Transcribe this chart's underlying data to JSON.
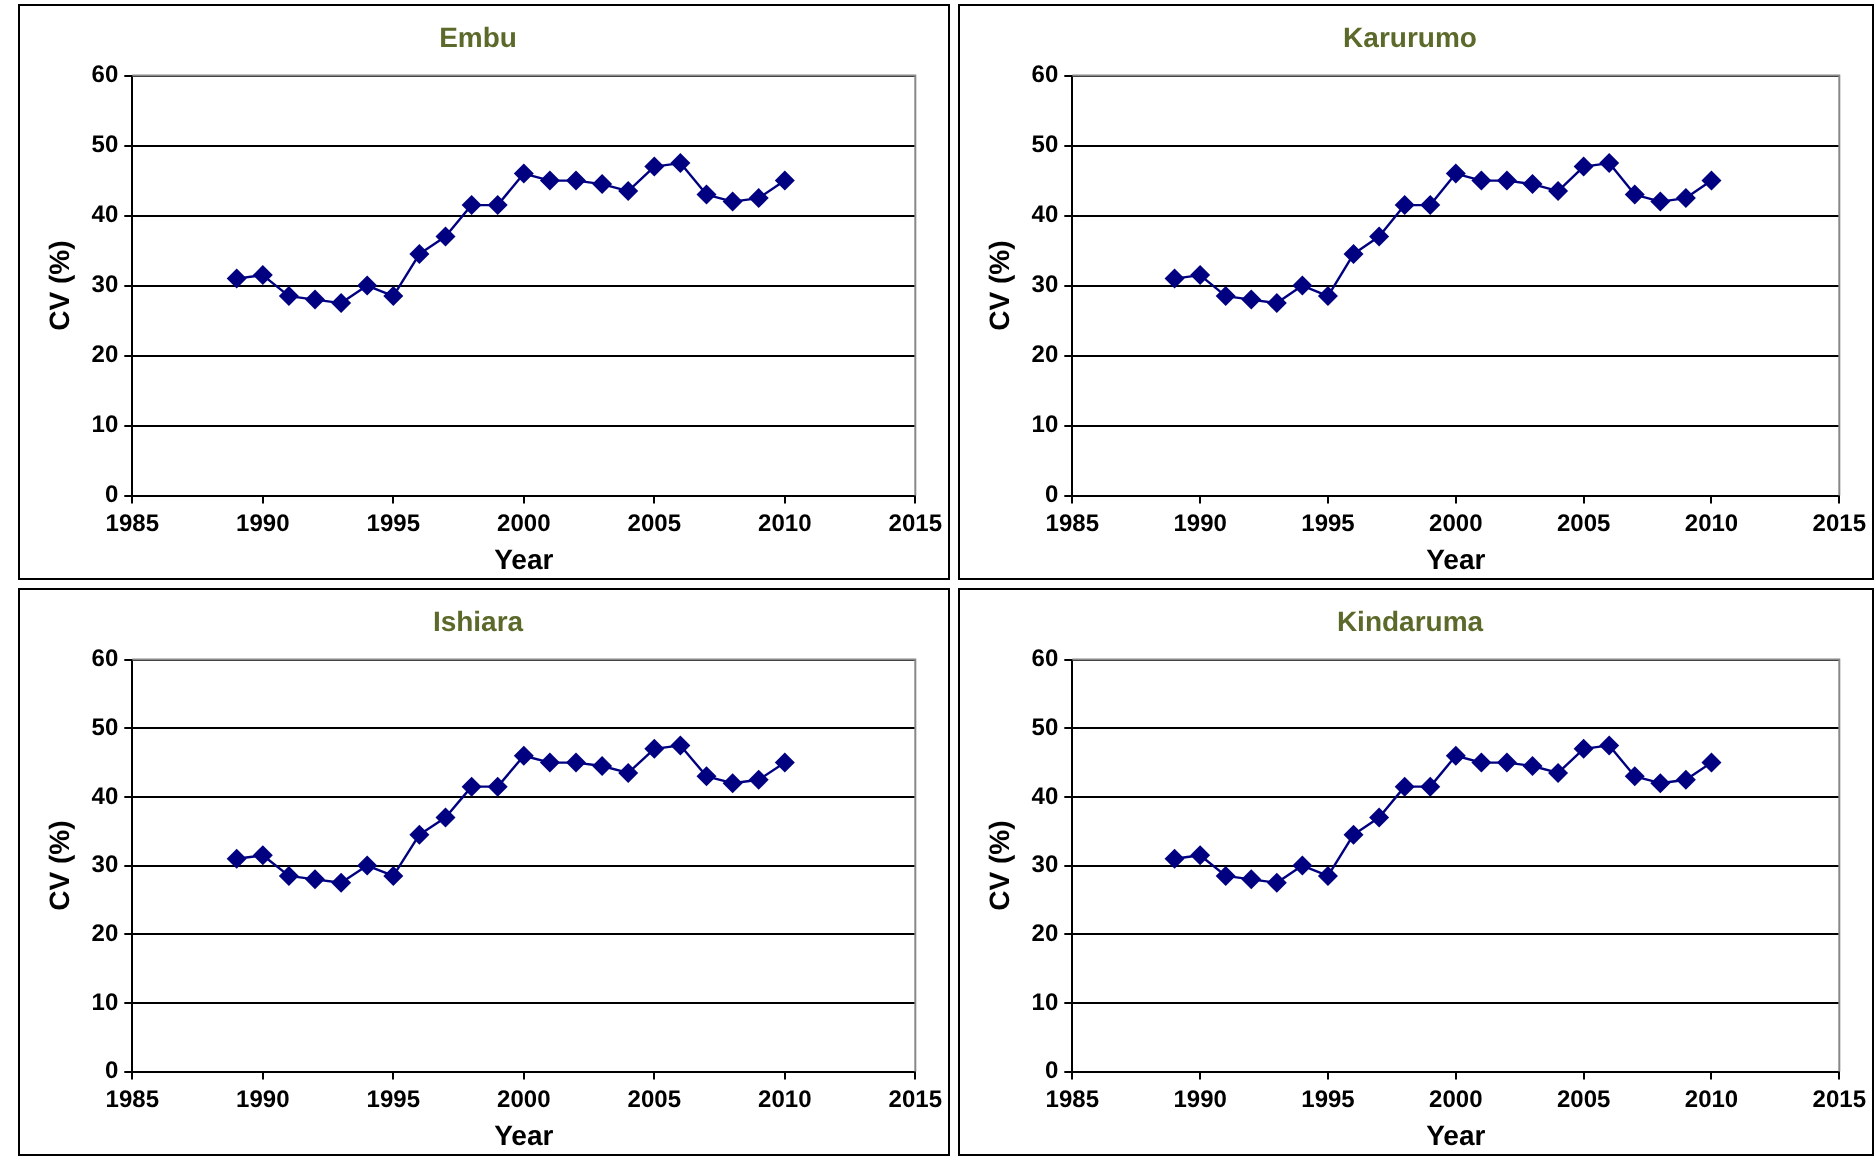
{
  "chart_data": [
    {
      "type": "line",
      "title": "Embu",
      "xlabel": "Year",
      "ylabel": "CV (%)",
      "x": [
        1989,
        1990,
        1991,
        1992,
        1993,
        1994,
        1995,
        1996,
        1997,
        1998,
        1999,
        2000,
        2001,
        2002,
        2003,
        2004,
        2005,
        2006,
        2007,
        2008,
        2009,
        2010
      ],
      "series": [
        {
          "color": "#000080",
          "values": [
            31,
            31.5,
            28.5,
            28,
            27.5,
            30,
            28.5,
            34.5,
            37,
            41.5,
            41.5,
            46,
            45,
            45,
            44.5,
            43.5,
            47,
            47.5,
            43,
            42,
            42.5,
            45
          ]
        }
      ],
      "xlim": [
        1985,
        2015
      ],
      "xticks": [
        1985,
        1990,
        1995,
        2000,
        2005,
        2010,
        2015
      ],
      "ylim": [
        0,
        60
      ],
      "yticks": [
        0,
        10,
        20,
        30,
        40,
        50,
        60
      ],
      "grid": "y",
      "legend": false,
      "marker": "diamond",
      "line_style": "solid"
    },
    {
      "type": "line",
      "title": "Karurumo",
      "xlabel": "Year",
      "ylabel": "CV (%)",
      "x": [
        1989,
        1990,
        1991,
        1992,
        1993,
        1994,
        1995,
        1996,
        1997,
        1998,
        1999,
        2000,
        2001,
        2002,
        2003,
        2004,
        2005,
        2006,
        2007,
        2008,
        2009,
        2010
      ],
      "series": [
        {
          "color": "#000080",
          "values": [
            31,
            31.5,
            28.5,
            28,
            27.5,
            30,
            28.5,
            34.5,
            37,
            41.5,
            41.5,
            46,
            45,
            45,
            44.5,
            43.5,
            47,
            47.5,
            43,
            42,
            42.5,
            45
          ]
        }
      ],
      "xlim": [
        1985,
        2015
      ],
      "xticks": [
        1985,
        1990,
        1995,
        2000,
        2005,
        2010,
        2015
      ],
      "ylim": [
        0,
        60
      ],
      "yticks": [
        0,
        10,
        20,
        30,
        40,
        50,
        60
      ],
      "grid": "y",
      "legend": false,
      "marker": "diamond",
      "line_style": "solid"
    },
    {
      "type": "line",
      "title": "Ishiara",
      "xlabel": "Year",
      "ylabel": "CV (%)",
      "x": [
        1989,
        1990,
        1991,
        1992,
        1993,
        1994,
        1995,
        1996,
        1997,
        1998,
        1999,
        2000,
        2001,
        2002,
        2003,
        2004,
        2005,
        2006,
        2007,
        2008,
        2009,
        2010
      ],
      "series": [
        {
          "color": "#000080",
          "values": [
            31,
            31.5,
            28.5,
            28,
            27.5,
            30,
            28.5,
            34.5,
            37,
            41.5,
            41.5,
            46,
            45,
            45,
            44.5,
            43.5,
            47,
            47.5,
            43,
            42,
            42.5,
            45
          ]
        }
      ],
      "xlim": [
        1985,
        2015
      ],
      "xticks": [
        1985,
        1990,
        1995,
        2000,
        2005,
        2010,
        2015
      ],
      "ylim": [
        0,
        60
      ],
      "yticks": [
        0,
        10,
        20,
        30,
        40,
        50,
        60
      ],
      "grid": "y",
      "legend": false,
      "marker": "diamond",
      "line_style": "solid"
    },
    {
      "type": "line",
      "title": "Kindaruma",
      "xlabel": "Year",
      "ylabel": "CV (%)",
      "x": [
        1989,
        1990,
        1991,
        1992,
        1993,
        1994,
        1995,
        1996,
        1997,
        1998,
        1999,
        2000,
        2001,
        2002,
        2003,
        2004,
        2005,
        2006,
        2007,
        2008,
        2009,
        2010
      ],
      "series": [
        {
          "color": "#000080",
          "values": [
            31,
            31.5,
            28.5,
            28,
            27.5,
            30,
            28.5,
            34.5,
            37,
            41.5,
            41.5,
            46,
            45,
            45,
            44.5,
            43.5,
            47,
            47.5,
            43,
            42,
            42.5,
            45
          ]
        }
      ],
      "xlim": [
        1985,
        2015
      ],
      "xticks": [
        1985,
        1990,
        1995,
        2000,
        2005,
        2010,
        2015
      ],
      "ylim": [
        0,
        60
      ],
      "yticks": [
        0,
        10,
        20,
        30,
        40,
        50,
        60
      ],
      "grid": "y",
      "legend": false,
      "marker": "diamond",
      "line_style": "solid"
    }
  ]
}
